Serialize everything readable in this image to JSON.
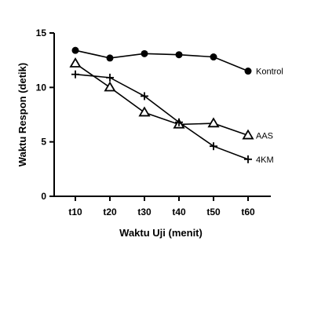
{
  "chart_data": {
    "type": "line",
    "xlabel": "Waktu Uji (menit)",
    "ylabel": "Waktu Respon (detik)",
    "categories": [
      "t10",
      "t20",
      "t30",
      "t40",
      "t50",
      "t60"
    ],
    "ylim": [
      0,
      15
    ],
    "yticks": [
      "0",
      "5",
      "10",
      "15"
    ],
    "grid": false,
    "series": [
      {
        "name": "Kontrol",
        "marker": "filled-circle",
        "values": [
          13.4,
          12.7,
          13.1,
          13.0,
          12.8,
          11.5
        ]
      },
      {
        "name": "AAS",
        "marker": "open-triangle",
        "values": [
          12.2,
          10.0,
          7.7,
          6.6,
          6.7,
          5.6
        ]
      },
      {
        "name": "4KM",
        "marker": "plus",
        "values": [
          11.2,
          10.9,
          9.2,
          6.8,
          4.6,
          3.4
        ]
      }
    ]
  }
}
